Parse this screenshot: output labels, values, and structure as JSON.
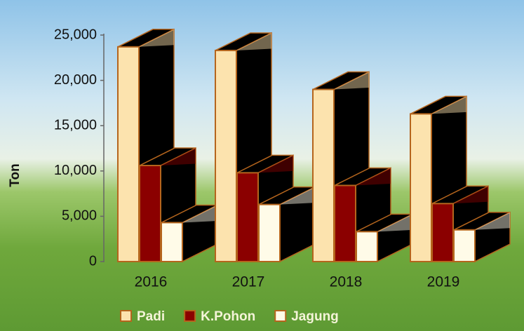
{
  "chart_data": {
    "type": "bar3d",
    "y_label": "Ton",
    "categories": [
      "2016",
      "2017",
      "2018",
      "2019"
    ],
    "series": [
      {
        "name": "Padi",
        "color": "#fce3ae",
        "values": [
          23700,
          23300,
          19000,
          16300
        ]
      },
      {
        "name": "K.Pohon",
        "color": "#8b0000",
        "values": [
          10600,
          9800,
          8400,
          6400
        ]
      },
      {
        "name": "Jagung",
        "color": "#fffbe8",
        "values": [
          4300,
          6300,
          3300,
          3500
        ]
      }
    ],
    "ylim": [
      0,
      25000
    ],
    "yticks": [
      0,
      {
        "value": 5000,
        "label": "5,000"
      },
      {
        "value": 10000,
        "label": "10,000"
      },
      {
        "value": 15000,
        "label": "15,000"
      },
      {
        "value": 20000,
        "label": "20,000"
      },
      {
        "value": 25000,
        "label": "25,000"
      }
    ],
    "legend": "bottom"
  }
}
